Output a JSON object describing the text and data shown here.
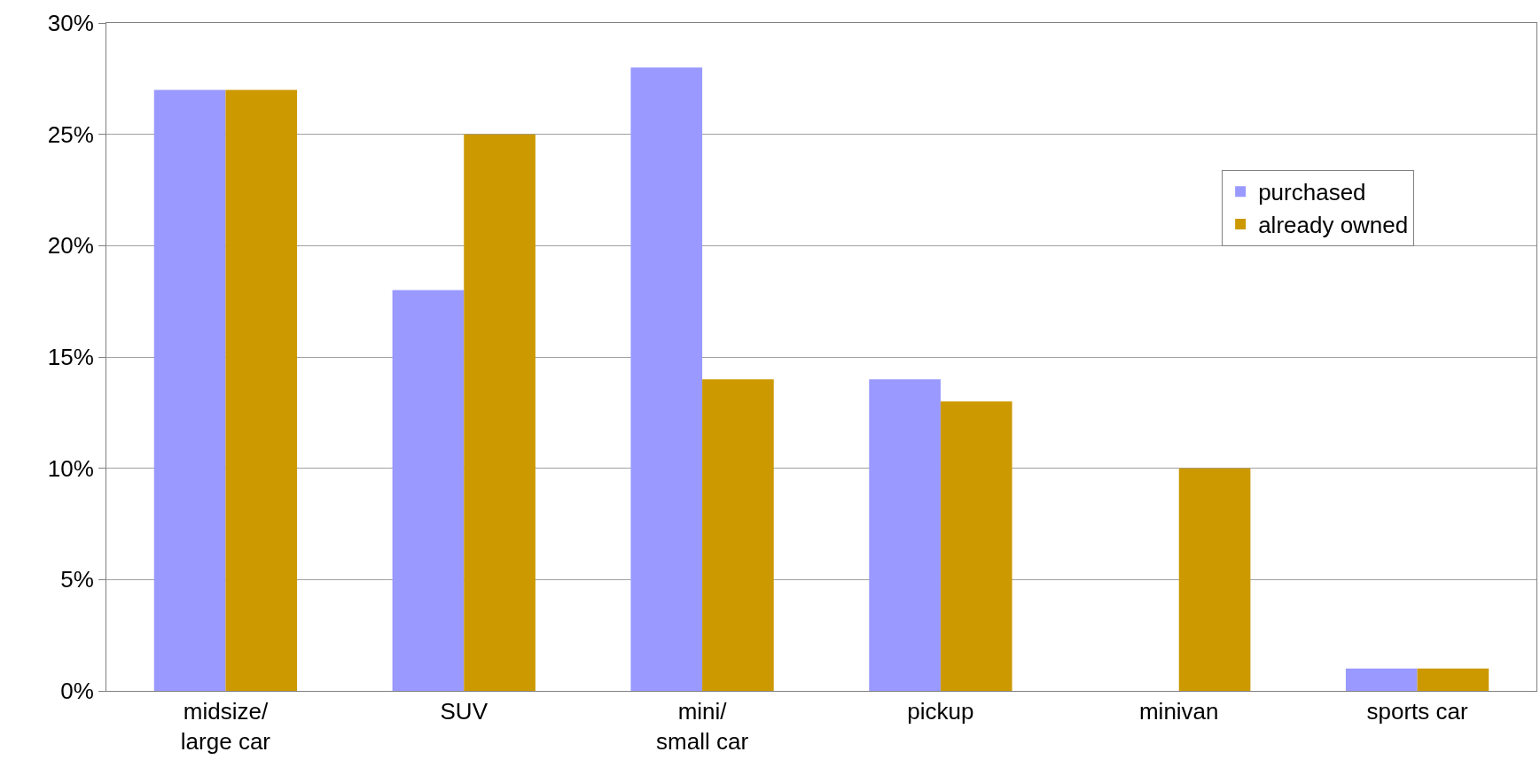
{
  "chart_data": {
    "type": "bar",
    "categories": [
      "midsize/\nlarge car",
      "SUV",
      "mini/\nsmall car",
      "pickup",
      "minivan",
      "sports car"
    ],
    "series": [
      {
        "name": "purchased",
        "color": "#9999ff",
        "values": [
          27,
          18,
          28,
          14,
          0,
          1
        ]
      },
      {
        "name": "already owned",
        "color": "#cc9900",
        "values": [
          27,
          25,
          14,
          13,
          10,
          1
        ]
      }
    ],
    "ylim": [
      0,
      30
    ],
    "yticks": [
      {
        "value": 0,
        "label": "0%"
      },
      {
        "value": 5,
        "label": "5%"
      },
      {
        "value": 10,
        "label": "10%"
      },
      {
        "value": 15,
        "label": "15%"
      },
      {
        "value": 20,
        "label": "20%"
      },
      {
        "value": 25,
        "label": "25%"
      },
      {
        "value": 30,
        "label": "30%"
      }
    ],
    "grid": "y",
    "legend": "top right"
  }
}
